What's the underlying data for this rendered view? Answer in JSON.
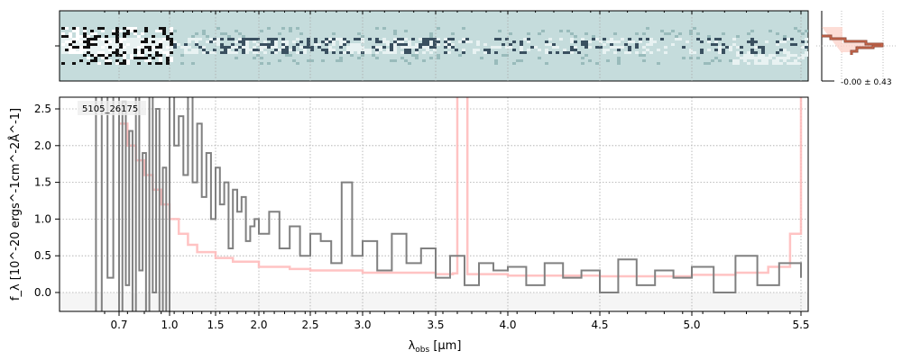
{
  "chart_data": {
    "type": "line",
    "object_label": "5105_26175",
    "xlabel": "λ_obs [μm]",
    "xlabel_main": "λ",
    "xlabel_sub": "obs",
    "xlabel_unit": " [μm]",
    "ylabel": "f_λ [10^-20 ergs^-1cm^-2Å^-1]",
    "ylim": [
      -0.26,
      2.66
    ],
    "xlim": [
      0.6,
      5.52
    ],
    "x_ticks": [
      0.7,
      1.0,
      1.5,
      2.0,
      2.5,
      3.0,
      3.5,
      4.0,
      4.5,
      5.0,
      5.5
    ],
    "x_tick_labels": [
      "0.7",
      "1.0",
      "1.5",
      "2.0",
      "2.5",
      "3.0",
      "3.5",
      "4.0",
      "4.5",
      "5.0",
      "5.5"
    ],
    "y_ticks": [
      0.0,
      0.5,
      1.0,
      1.5,
      2.0,
      2.5
    ],
    "y_tick_labels": [
      "0.0",
      "0.5",
      "1.0",
      "1.5",
      "2.0",
      "2.5"
    ],
    "grid": true,
    "series": [
      {
        "name": "flux",
        "color": "#808080",
        "x": [
          0.6,
          0.62,
          0.64,
          0.66,
          0.68,
          0.7,
          0.72,
          0.74,
          0.76,
          0.78,
          0.8,
          0.82,
          0.84,
          0.86,
          0.88,
          0.9,
          0.92,
          0.94,
          0.96,
          0.98,
          1.0,
          1.05,
          1.1,
          1.15,
          1.2,
          1.25,
          1.3,
          1.35,
          1.4,
          1.45,
          1.5,
          1.55,
          1.6,
          1.65,
          1.7,
          1.75,
          1.8,
          1.85,
          1.9,
          1.95,
          2.0,
          2.1,
          2.2,
          2.3,
          2.4,
          2.5,
          2.6,
          2.7,
          2.8,
          2.9,
          3.0,
          3.1,
          3.2,
          3.3,
          3.4,
          3.5,
          3.6,
          3.7,
          3.8,
          3.9,
          4.0,
          4.1,
          4.2,
          4.3,
          4.4,
          4.5,
          4.6,
          4.7,
          4.8,
          4.9,
          5.0,
          5.1,
          5.2,
          5.3,
          5.4,
          5.5
        ],
        "y": [
          2.7,
          -0.3,
          2.7,
          0.2,
          2.7,
          -0.3,
          2.6,
          0.1,
          2.2,
          -0.3,
          2.7,
          0.3,
          1.9,
          -0.3,
          2.7,
          0.0,
          2.5,
          -0.3,
          1.7,
          -0.3,
          2.7,
          2.0,
          2.4,
          1.6,
          2.7,
          1.5,
          2.3,
          1.3,
          1.9,
          1.0,
          1.7,
          1.2,
          1.5,
          0.6,
          1.4,
          1.1,
          1.3,
          0.7,
          0.9,
          1.0,
          0.8,
          1.1,
          0.6,
          0.9,
          0.5,
          0.8,
          0.7,
          0.4,
          1.5,
          0.5,
          0.7,
          0.3,
          0.8,
          0.4,
          0.6,
          0.2,
          0.5,
          0.1,
          0.4,
          0.3,
          0.35,
          0.1,
          0.4,
          0.2,
          0.3,
          0.0,
          0.45,
          0.1,
          0.3,
          0.2,
          0.35,
          0.0,
          0.5,
          0.1,
          0.4,
          0.2
        ]
      },
      {
        "name": "error",
        "color": "#ffb8b8",
        "x": [
          0.7,
          0.75,
          0.8,
          0.85,
          0.9,
          0.95,
          1.0,
          1.1,
          1.2,
          1.3,
          1.5,
          1.7,
          2.0,
          2.3,
          2.5,
          3.0,
          3.5,
          3.62,
          3.65,
          3.68,
          3.72,
          4.0,
          4.5,
          4.8,
          5.0,
          5.2,
          5.35,
          5.45,
          5.5
        ],
        "y": [
          2.3,
          2.0,
          1.8,
          1.6,
          1.4,
          1.2,
          1.0,
          0.8,
          0.65,
          0.55,
          0.47,
          0.42,
          0.35,
          0.32,
          0.3,
          0.27,
          0.25,
          0.26,
          2.7,
          2.7,
          0.25,
          0.23,
          0.22,
          0.22,
          0.24,
          0.27,
          0.35,
          0.8,
          2.7
        ]
      }
    ],
    "inset": {
      "label": "-0.00 ± 0.43"
    }
  }
}
